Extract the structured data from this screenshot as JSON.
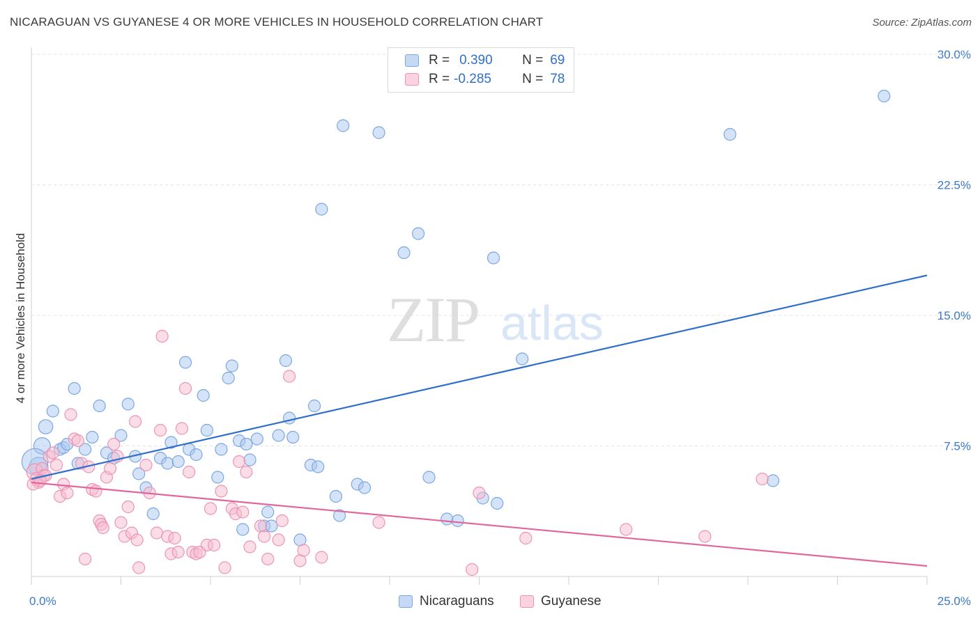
{
  "title": "NICARAGUAN VS GUYANESE 4 OR MORE VEHICLES IN HOUSEHOLD CORRELATION CHART",
  "source": "Source: ZipAtlas.com",
  "watermark": {
    "zip": "ZIP",
    "atlas": "atlas"
  },
  "legend": {
    "rows": [
      {
        "r_label": "R =",
        "r_value": "0.390",
        "n_label": "N =",
        "n_value": "69"
      },
      {
        "r_label": "R =",
        "r_value": "-0.285",
        "n_label": "N =",
        "n_value": "78"
      }
    ]
  },
  "chart_data": {
    "type": "scatter",
    "title": "NICARAGUAN VS GUYANESE 4 OR MORE VEHICLES IN HOUSEHOLD CORRELATION CHART",
    "xlabel": "",
    "ylabel": "4 or more Vehicles in Household",
    "xlim": [
      0,
      25
    ],
    "ylim": [
      0,
      30
    ],
    "x_tick_labels": [
      "0.0%",
      "25.0%"
    ],
    "y_ticks": [
      7.5,
      15.0,
      22.5,
      30.0
    ],
    "y_tick_labels": [
      "7.5%",
      "15.0%",
      "22.5%",
      "30.0%"
    ],
    "grid": true,
    "legend_position": "top-center",
    "series": [
      {
        "name": "Nicaraguans",
        "color": "#a9c8f0",
        "stroke": "#7aa7e0",
        "line_color": "#2f6fc9",
        "r": 0.39,
        "n": 69,
        "trend": {
          "x": [
            0,
            25
          ],
          "y": [
            5.6,
            17.3
          ]
        },
        "points": [
          [
            0.2,
            6.3
          ],
          [
            0.3,
            7.5
          ],
          [
            0.4,
            8.6
          ],
          [
            0.6,
            9.5
          ],
          [
            0.8,
            7.3
          ],
          [
            0.9,
            7.4
          ],
          [
            1.0,
            7.6
          ],
          [
            1.2,
            10.8
          ],
          [
            1.3,
            6.5
          ],
          [
            1.5,
            7.3
          ],
          [
            1.7,
            8.0
          ],
          [
            1.9,
            9.8
          ],
          [
            2.1,
            7.1
          ],
          [
            2.3,
            6.8
          ],
          [
            2.5,
            8.1
          ],
          [
            2.7,
            9.9
          ],
          [
            2.9,
            6.9
          ],
          [
            3.0,
            5.9
          ],
          [
            3.2,
            5.1
          ],
          [
            3.4,
            3.6
          ],
          [
            3.6,
            6.8
          ],
          [
            3.8,
            6.5
          ],
          [
            3.9,
            7.7
          ],
          [
            4.1,
            6.6
          ],
          [
            4.3,
            12.3
          ],
          [
            4.4,
            7.3
          ],
          [
            4.6,
            7.0
          ],
          [
            4.8,
            10.4
          ],
          [
            4.9,
            8.4
          ],
          [
            5.2,
            5.7
          ],
          [
            5.3,
            7.3
          ],
          [
            5.5,
            11.4
          ],
          [
            5.6,
            12.1
          ],
          [
            5.8,
            7.8
          ],
          [
            5.9,
            2.7
          ],
          [
            6.0,
            7.6
          ],
          [
            6.1,
            6.7
          ],
          [
            6.3,
            7.9
          ],
          [
            6.5,
            2.9
          ],
          [
            6.6,
            3.7
          ],
          [
            6.7,
            2.9
          ],
          [
            6.9,
            8.1
          ],
          [
            7.1,
            12.4
          ],
          [
            7.2,
            9.1
          ],
          [
            7.3,
            8.0
          ],
          [
            7.5,
            2.1
          ],
          [
            7.8,
            6.4
          ],
          [
            7.9,
            9.8
          ],
          [
            8.0,
            6.3
          ],
          [
            8.1,
            21.1
          ],
          [
            8.5,
            4.6
          ],
          [
            8.6,
            3.5
          ],
          [
            8.7,
            25.9
          ],
          [
            9.1,
            5.3
          ],
          [
            9.3,
            5.1
          ],
          [
            9.7,
            25.5
          ],
          [
            10.4,
            18.6
          ],
          [
            10.8,
            19.7
          ],
          [
            11.1,
            5.7
          ],
          [
            11.6,
            3.3
          ],
          [
            11.9,
            3.2
          ],
          [
            12.6,
            4.5
          ],
          [
            12.9,
            18.3
          ],
          [
            13.0,
            4.2
          ],
          [
            13.7,
            12.5
          ],
          [
            19.5,
            25.4
          ],
          [
            20.7,
            5.5
          ],
          [
            23.8,
            27.6
          ],
          [
            0.1,
            6.6
          ]
        ],
        "point_sizes": [
          1.6,
          1.4,
          1.2,
          1.0,
          1.0,
          1.0,
          1.0,
          1.0,
          1.0,
          1.0,
          1.0,
          1.0,
          1.0,
          1.0,
          1.0,
          1.0,
          1.0,
          1.0,
          1.0,
          1.0,
          1.0,
          1.0,
          1.0,
          1.0,
          1.0,
          1.0,
          1.0,
          1.0,
          1.0,
          1.0,
          1.0,
          1.0,
          1.0,
          1.0,
          1.0,
          1.0,
          1.0,
          1.0,
          1.0,
          1.0,
          1.0,
          1.0,
          1.0,
          1.0,
          1.0,
          1.0,
          1.0,
          1.0,
          1.0,
          1.0,
          1.0,
          1.0,
          1.0,
          1.0,
          1.0,
          1.0,
          1.0,
          1.0,
          1.0,
          1.0,
          1.0,
          1.0,
          1.0,
          1.0,
          1.0,
          1.0,
          1.0,
          1.0,
          2.2
        ]
      },
      {
        "name": "Guyanese",
        "color": "#f7bcd0",
        "stroke": "#ec93b1",
        "line_color": "#e0679a",
        "r": -0.285,
        "n": 78,
        "trend": {
          "x": [
            0,
            25
          ],
          "y": [
            5.4,
            0.6
          ]
        },
        "points": [
          [
            0.1,
            6.0
          ],
          [
            0.15,
            5.6
          ],
          [
            0.2,
            5.4
          ],
          [
            0.3,
            6.2
          ],
          [
            0.35,
            5.8
          ],
          [
            0.4,
            5.8
          ],
          [
            0.5,
            6.9
          ],
          [
            0.6,
            7.1
          ],
          [
            0.7,
            6.4
          ],
          [
            0.8,
            4.6
          ],
          [
            0.9,
            5.3
          ],
          [
            1.0,
            4.8
          ],
          [
            1.1,
            9.3
          ],
          [
            1.2,
            7.9
          ],
          [
            1.3,
            7.8
          ],
          [
            1.4,
            6.5
          ],
          [
            1.5,
            1.0
          ],
          [
            1.6,
            6.3
          ],
          [
            1.7,
            5.0
          ],
          [
            1.8,
            4.9
          ],
          [
            1.9,
            3.2
          ],
          [
            1.95,
            3.0
          ],
          [
            2.0,
            2.8
          ],
          [
            2.1,
            5.7
          ],
          [
            2.2,
            6.2
          ],
          [
            2.3,
            7.6
          ],
          [
            2.4,
            6.9
          ],
          [
            2.5,
            3.1
          ],
          [
            2.6,
            2.3
          ],
          [
            2.7,
            4.0
          ],
          [
            2.8,
            2.5
          ],
          [
            2.9,
            8.9
          ],
          [
            2.95,
            2.1
          ],
          [
            3.0,
            0.5
          ],
          [
            3.2,
            6.4
          ],
          [
            3.3,
            4.8
          ],
          [
            3.5,
            2.5
          ],
          [
            3.6,
            8.4
          ],
          [
            3.65,
            13.8
          ],
          [
            3.8,
            2.3
          ],
          [
            3.9,
            1.3
          ],
          [
            4.0,
            2.2
          ],
          [
            4.1,
            1.4
          ],
          [
            4.2,
            8.5
          ],
          [
            4.3,
            10.8
          ],
          [
            4.4,
            6.0
          ],
          [
            4.5,
            1.4
          ],
          [
            4.6,
            1.3
          ],
          [
            4.7,
            1.4
          ],
          [
            4.9,
            1.8
          ],
          [
            5.0,
            3.9
          ],
          [
            5.1,
            1.8
          ],
          [
            5.3,
            4.9
          ],
          [
            5.4,
            0.5
          ],
          [
            5.6,
            3.9
          ],
          [
            5.7,
            3.6
          ],
          [
            5.8,
            6.6
          ],
          [
            5.9,
            3.7
          ],
          [
            6.0,
            6.0
          ],
          [
            6.1,
            1.7
          ],
          [
            6.4,
            2.9
          ],
          [
            6.5,
            2.3
          ],
          [
            6.6,
            1.0
          ],
          [
            6.9,
            2.1
          ],
          [
            7.0,
            3.2
          ],
          [
            7.2,
            11.5
          ],
          [
            7.5,
            0.9
          ],
          [
            7.6,
            1.5
          ],
          [
            8.1,
            1.1
          ],
          [
            9.7,
            3.1
          ],
          [
            12.3,
            0.4
          ],
          [
            12.5,
            4.8
          ],
          [
            13.8,
            2.2
          ],
          [
            16.6,
            2.7
          ],
          [
            18.8,
            2.3
          ],
          [
            20.4,
            5.6
          ],
          [
            0.05,
            5.3
          ],
          [
            0.25,
            5.5
          ]
        ],
        "point_sizes": [
          1.4,
          1.1,
          1.0,
          1.0,
          1.0,
          1.0,
          1.0,
          1.0,
          1.0,
          1.0,
          1.0,
          1.0,
          1.0,
          1.0,
          1.0,
          1.0,
          1.0,
          1.0,
          1.0,
          1.0,
          1.0,
          1.0,
          1.0,
          1.0,
          1.0,
          1.0,
          1.0,
          1.0,
          1.0,
          1.0,
          1.0,
          1.0,
          1.0,
          1.0,
          1.0,
          1.0,
          1.0,
          1.0,
          1.0,
          1.0,
          1.0,
          1.0,
          1.0,
          1.0,
          1.0,
          1.0,
          1.0,
          1.0,
          1.0,
          1.0,
          1.0,
          1.0,
          1.0,
          1.0,
          1.0,
          1.0,
          1.0,
          1.0,
          1.0,
          1.0,
          1.0,
          1.0,
          1.0,
          1.0,
          1.0,
          1.0,
          1.0,
          1.0,
          1.0,
          1.0,
          1.0,
          1.0,
          1.0,
          1.0,
          1.0,
          1.0,
          1.0,
          1.0
        ]
      }
    ]
  }
}
